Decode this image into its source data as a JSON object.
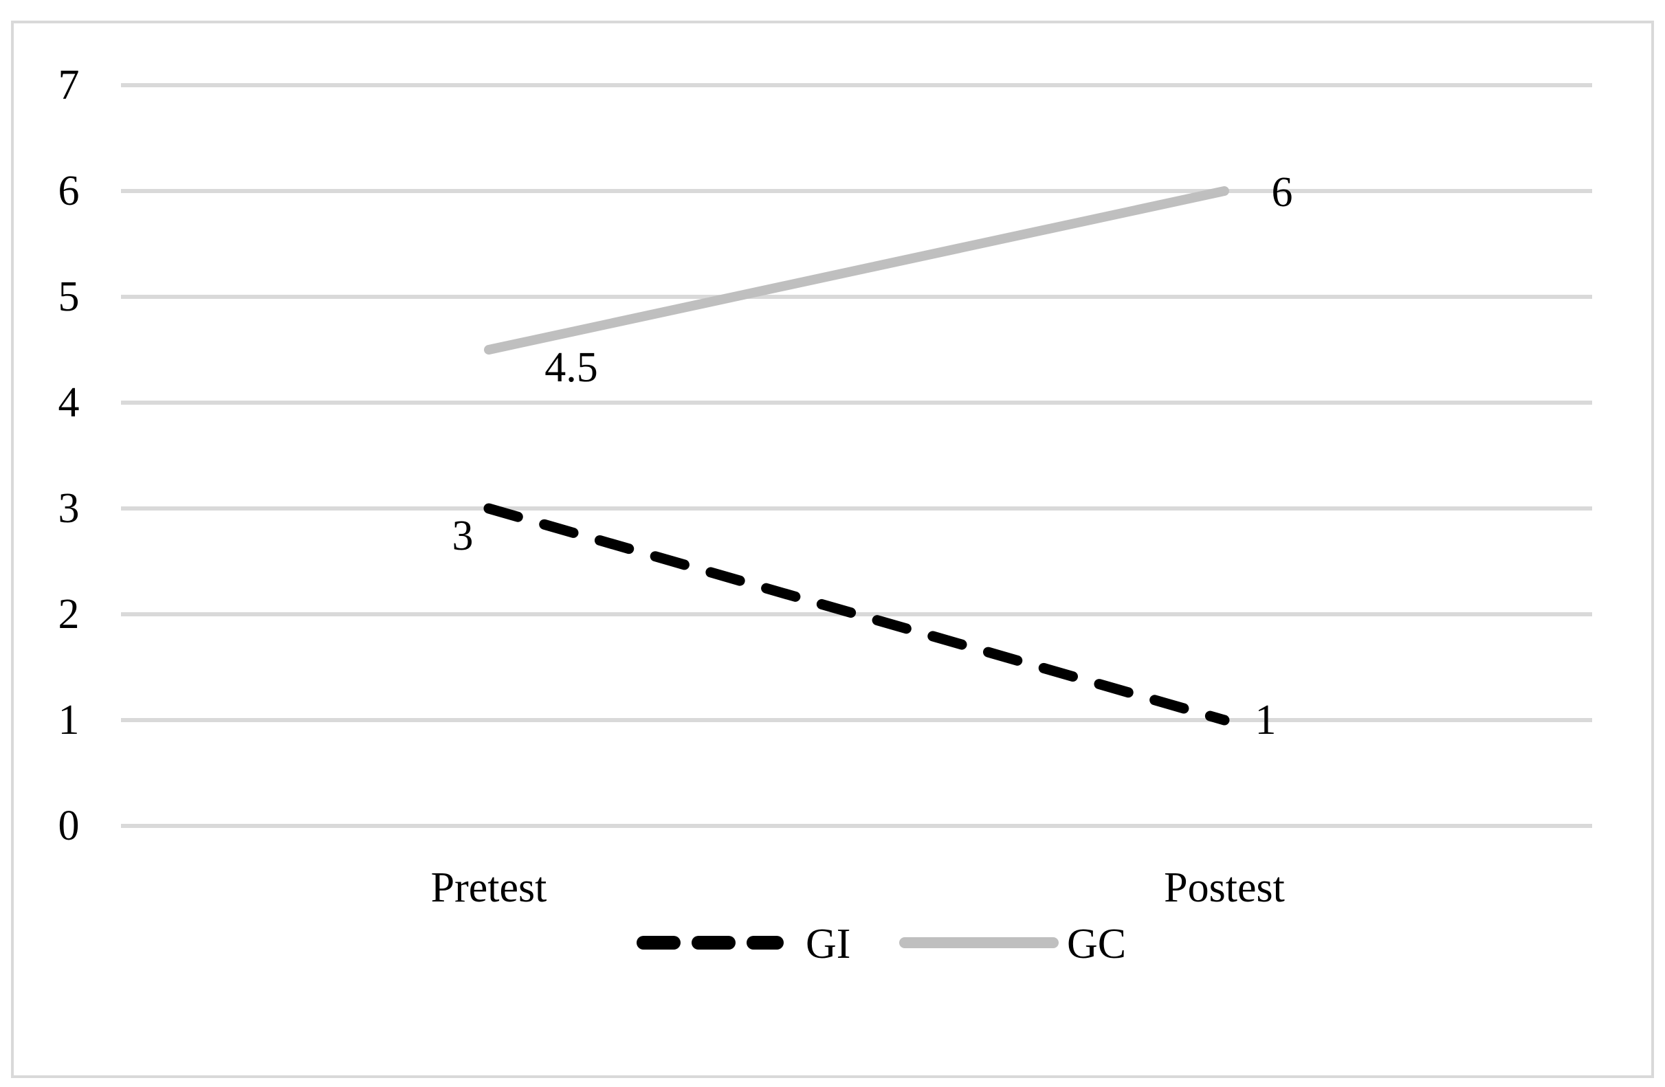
{
  "chart_data": {
    "type": "line",
    "title": "",
    "xlabel": "",
    "ylabel": "",
    "categories": [
      "Pretest",
      "Postest"
    ],
    "ylim": [
      0,
      7
    ],
    "yticks": [
      0,
      1,
      2,
      3,
      4,
      5,
      6,
      7
    ],
    "grid": true,
    "legend_position": "bottom",
    "series": [
      {
        "name": "GI",
        "values": [
          3,
          1
        ],
        "data_labels": [
          "3",
          "1"
        ],
        "color": "#000000",
        "line_style": "dashed"
      },
      {
        "name": "GC",
        "values": [
          4.5,
          6
        ],
        "data_labels": [
          "4.5",
          "6"
        ],
        "color": "#bfbfbf",
        "line_style": "solid"
      }
    ]
  },
  "colors": {
    "gridline": "#d9d9d9",
    "frame_border": "#d9d9d9",
    "background": "#ffffff"
  }
}
